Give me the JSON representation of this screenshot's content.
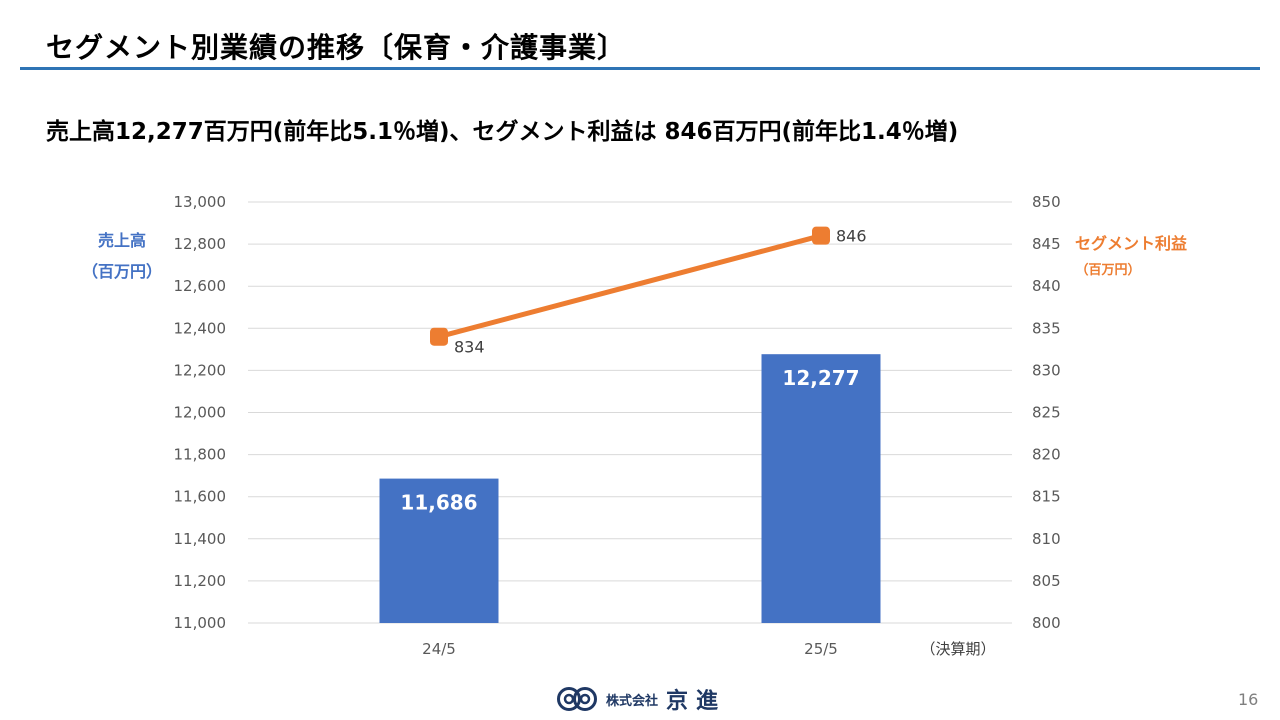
{
  "slide": {
    "title": "セグメント別業績の推移〔保育・介護事業〕",
    "subtitle": "売上高12,277百万円(前年比5.1％増)、セグメント利益は 846百万円(前年比1.4％増)",
    "page_number": "16",
    "accent_color": "#2e74b5"
  },
  "footer": {
    "company_prefix": "株式会社",
    "company_name": "京進",
    "logo_icon": "kyoshin-logo-icon"
  },
  "chart_data": {
    "type": "bar",
    "categories": [
      "24/5",
      "25/5"
    ],
    "x_suffix_label": "（決算期）",
    "series": [
      {
        "type": "bar",
        "axis": "left",
        "values": [
          11686,
          12277
        ],
        "data_labels": [
          "11,686",
          "12,277"
        ],
        "color": "#4472c4"
      },
      {
        "type": "line",
        "axis": "right",
        "values": [
          834,
          846
        ],
        "data_labels": [
          "834",
          "846"
        ],
        "color": "#ed7d31"
      }
    ],
    "y_left": {
      "label": "売上高",
      "unit": "（百万円）",
      "range": [
        11000,
        13000
      ],
      "ticks": [
        "11,000",
        "11,200",
        "11,400",
        "11,600",
        "11,800",
        "12,000",
        "12,200",
        "12,400",
        "12,600",
        "12,800",
        "13,000"
      ],
      "color": "#4472c4"
    },
    "y_right": {
      "label": "セグメント利益",
      "unit": "（百万円）",
      "range": [
        800,
        850
      ],
      "ticks": [
        "800",
        "805",
        "810",
        "815",
        "820",
        "825",
        "830",
        "835",
        "840",
        "845",
        "850"
      ],
      "color": "#ed7d31"
    },
    "grid": true,
    "legend": "none"
  }
}
